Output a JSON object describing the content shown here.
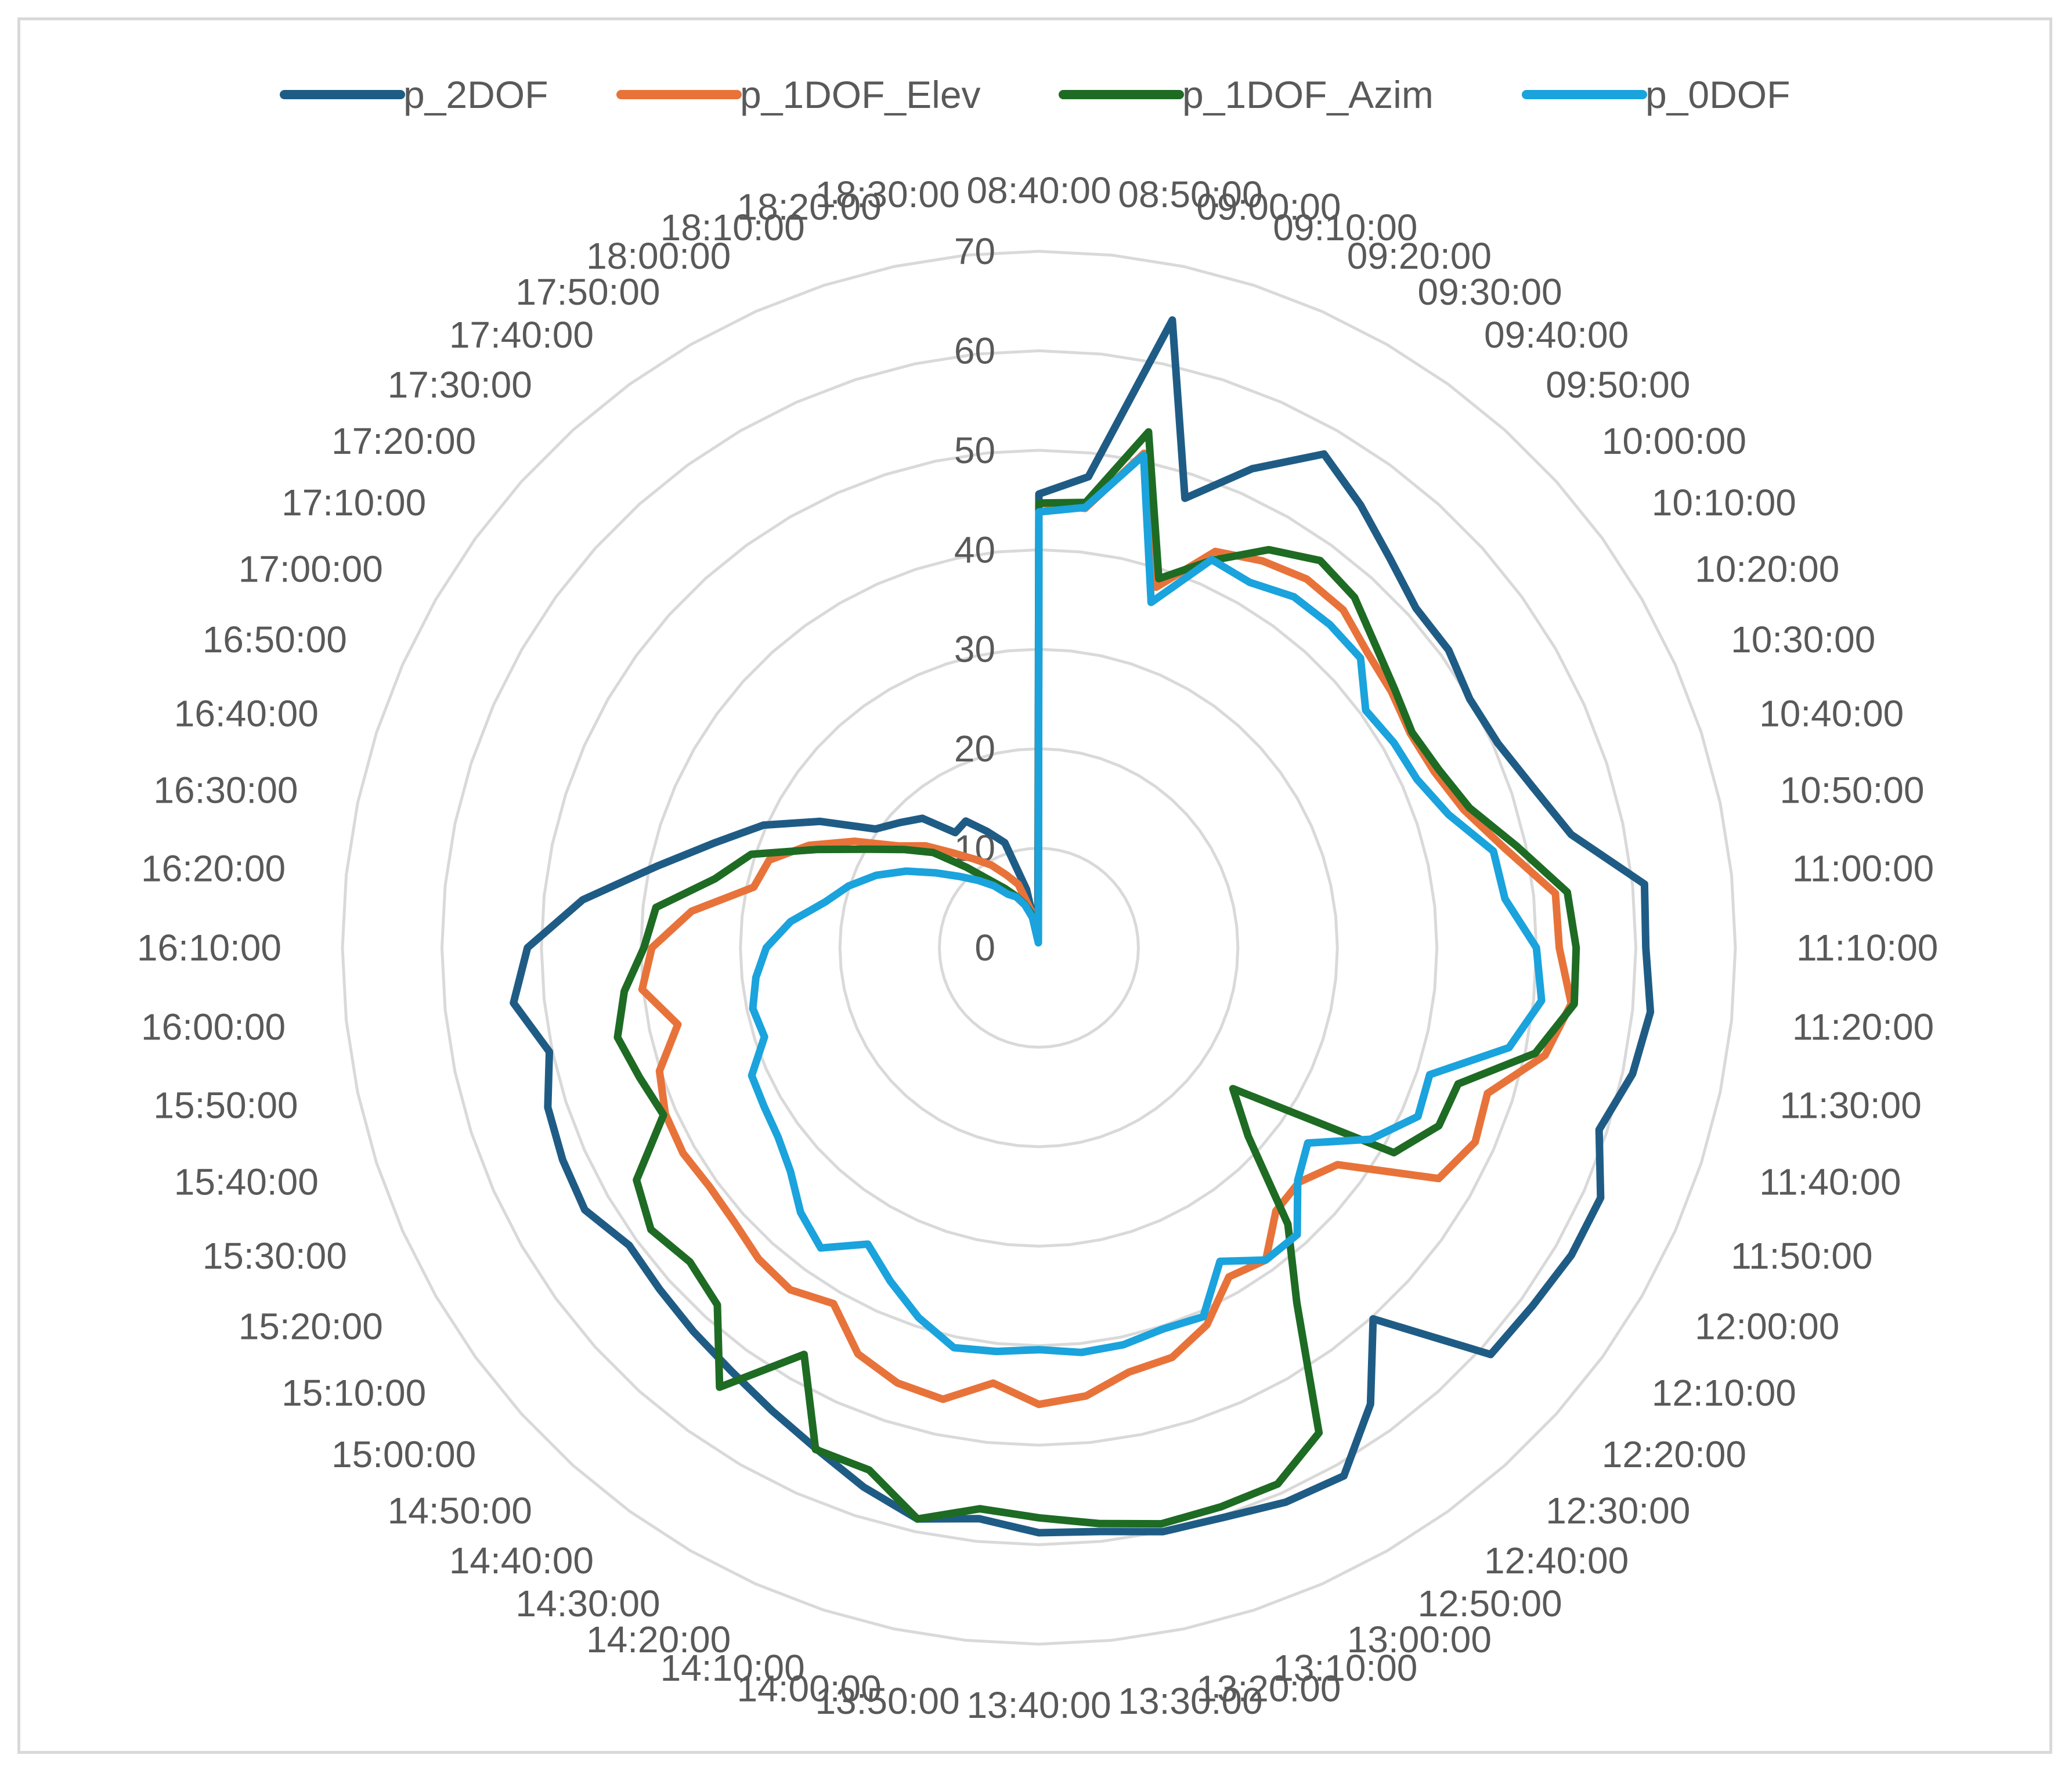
{
  "chart_data": {
    "type": "radar",
    "title": "",
    "rlim": [
      0,
      70
    ],
    "r_ticks": [
      "0",
      "10",
      "20",
      "30",
      "40",
      "50",
      "60",
      "70"
    ],
    "grid": true,
    "legend_position": "top",
    "categories": [
      "08:40:00",
      "08:50:00",
      "09:00:00",
      "09:10:00",
      "09:20:00",
      "09:30:00",
      "09:40:00",
      "09:50:00",
      "10:00:00",
      "10:10:00",
      "10:20:00",
      "10:30:00",
      "10:40:00",
      "10:50:00",
      "11:00:00",
      "11:10:00",
      "11:20:00",
      "11:30:00",
      "11:40:00",
      "11:50:00",
      "12:00:00",
      "12:10:00",
      "12:20:00",
      "12:30:00",
      "12:40:00",
      "12:50:00",
      "13:00:00",
      "13:10:00",
      "13:20:00",
      "13:30:00",
      "13:40:00",
      "13:50:00",
      "14:00:00",
      "14:10:00",
      "14:20:00",
      "14:30:00",
      "14:40:00",
      "14:50:00",
      "15:00:00",
      "15:10:00",
      "15:20:00",
      "15:30:00",
      "15:40:00",
      "15:50:00",
      "16:00:00",
      "16:10:00",
      "16:20:00",
      "16:30:00",
      "16:40:00",
      "16:50:00",
      "17:00:00",
      "17:10:00",
      "17:20:00",
      "17:30:00",
      "17:40:00",
      "17:50:00",
      "18:00:00",
      "18:10:00",
      "18:20:00",
      "18:30:00"
    ],
    "series": [
      {
        "name": "p_2DOF",
        "color": "#1f5c85",
        "values": [
          45.6,
          47.6,
          64.5,
          47.5,
          52.7,
          57.3,
          55.0,
          52.7,
          51.0,
          50.9,
          50.0,
          50.5,
          52.2,
          54.7,
          61.2,
          61.0,
          61.8,
          61.0,
          59.2,
          61.8,
          61.8,
          61.3,
          61.1,
          50.2,
          56.7,
          61.3,
          61.0,
          60.2,
          60.0,
          59.0,
          58.8,
          57.7,
          58.7,
          57.0,
          55.1,
          53.7,
          52.6,
          51.9,
          51.3,
          50.9,
          52.7,
          52.4,
          51.9,
          50.3,
          53.1,
          51.4,
          46.1,
          39.3,
          34.2,
          30.3,
          25.4,
          20.3,
          18.8,
          17.5,
          14.3,
          14.7,
          12.8,
          11.1,
          6.0,
          1.0
        ]
      },
      {
        "name": "p_1DOF_Elev",
        "color": "#e8733a",
        "values": [
          44.7,
          44.4,
          50.8,
          38.1,
          43.6,
          44.9,
          45.8,
          45.7,
          44.4,
          43.8,
          43.1,
          43.5,
          44.9,
          47.9,
          52.2,
          52.3,
          53.8,
          52.0,
          47.4,
          48.0,
          46.4,
          37.1,
          35.2,
          35.6,
          38.8,
          38.2,
          41.5,
          43.3,
          43.6,
          45.3,
          45.9,
          44.0,
          46.4,
          46.0,
          44.7,
          41.3,
          42.5,
          42.1,
          41.2,
          40.9,
          41.3,
          41.1,
          40.1,
          37.1,
          40.1,
          38.9,
          35.1,
          29.3,
          28.5,
          25.3,
          21.4,
          17.4,
          15.3,
          12.8,
          11.0,
          9.6,
          8.0,
          6.7,
          3.8,
          0.6
        ]
      },
      {
        "name": "p_1DOF_Azim",
        "color": "#1e6b24",
        "values": [
          44.7,
          45.0,
          53.0,
          39.0,
          42.6,
          46.2,
          48.1,
          47.4,
          45.5,
          44.2,
          43.3,
          44.0,
          45.5,
          49.1,
          53.4,
          54.0,
          54.1,
          51.0,
          44.3,
          44.0,
          41.2,
          24.1,
          28.3,
          37.4,
          44.1,
          56.3,
          59.0,
          59.1,
          59.2,
          58.2,
          57.3,
          56.7,
          58.7,
          55.2,
          55.2,
          47.2,
          54.6,
          48.3,
          47.2,
          48.2,
          46.7,
          41.3,
          42.2,
          43.3,
          41.9,
          39.7,
          38.7,
          33.3,
          30.4,
          24.3,
          19.8,
          16.8,
          14.3,
          10.9,
          8.4,
          6.9,
          5.7,
          4.6,
          3.4,
          0.6
        ]
      },
      {
        "name": "p_0DOF",
        "color": "#1aa3dc",
        "values": [
          43.8,
          44.5,
          50.6,
          36.5,
          42.7,
          42.4,
          43.6,
          43.7,
          43.5,
          40.6,
          41.2,
          41.6,
          43.3,
          46.7,
          47.1,
          50.0,
          50.8,
          48.3,
          41.3,
          41.7,
          38.5,
          33.4,
          35.0,
          38.8,
          38.8,
          36.4,
          40.6,
          40.3,
          40.8,
          40.9,
          40.4,
          40.8,
          41.1,
          39.1,
          36.7,
          34.4,
          37.3,
          35.8,
          33.6,
          32.4,
          31.9,
          31.6,
          29.0,
          29.4,
          28.6,
          27.4,
          25.1,
          22.0,
          20.1,
          17.9,
          15.4,
          12.8,
          10.7,
          9.1,
          7.7,
          6.2,
          5.6,
          4.5,
          3.1,
          0.5
        ]
      }
    ]
  }
}
